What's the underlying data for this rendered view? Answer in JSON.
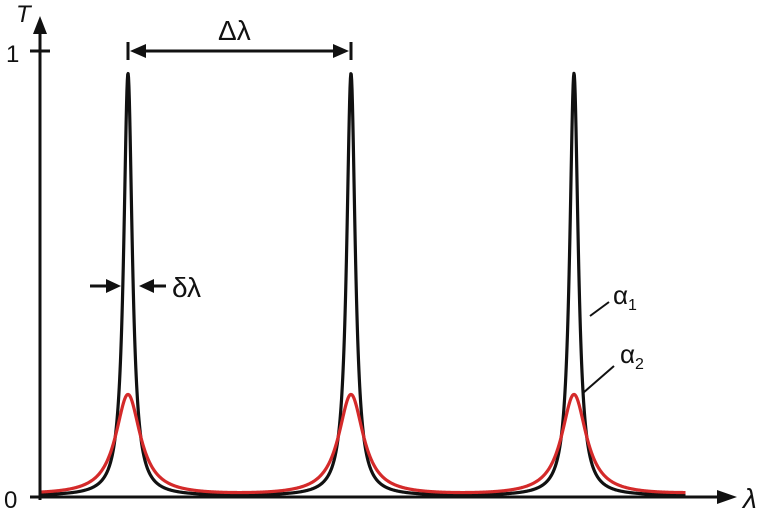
{
  "chart_data": {
    "type": "line",
    "title": "",
    "xlabel": "λ",
    "ylabel": "T",
    "y_ticks": [
      "0",
      "1"
    ],
    "ylim": [
      0,
      1
    ],
    "grid": false,
    "peak_positions": [
      1,
      2,
      3
    ],
    "xlim": [
      0.6,
      3.5
    ],
    "series": [
      {
        "name": "α1",
        "label_main": "α",
        "label_sub": "1",
        "color": "#111111",
        "peak_T": 0.95,
        "min_T": 0.005
      },
      {
        "name": "α2",
        "label_main": "α",
        "label_sub": "2",
        "color": "#d42a2a",
        "peak_T": 0.23,
        "min_T": 0.01
      }
    ],
    "annotations": {
      "free_spectral_range": "Δλ",
      "linewidth": "δλ"
    }
  }
}
